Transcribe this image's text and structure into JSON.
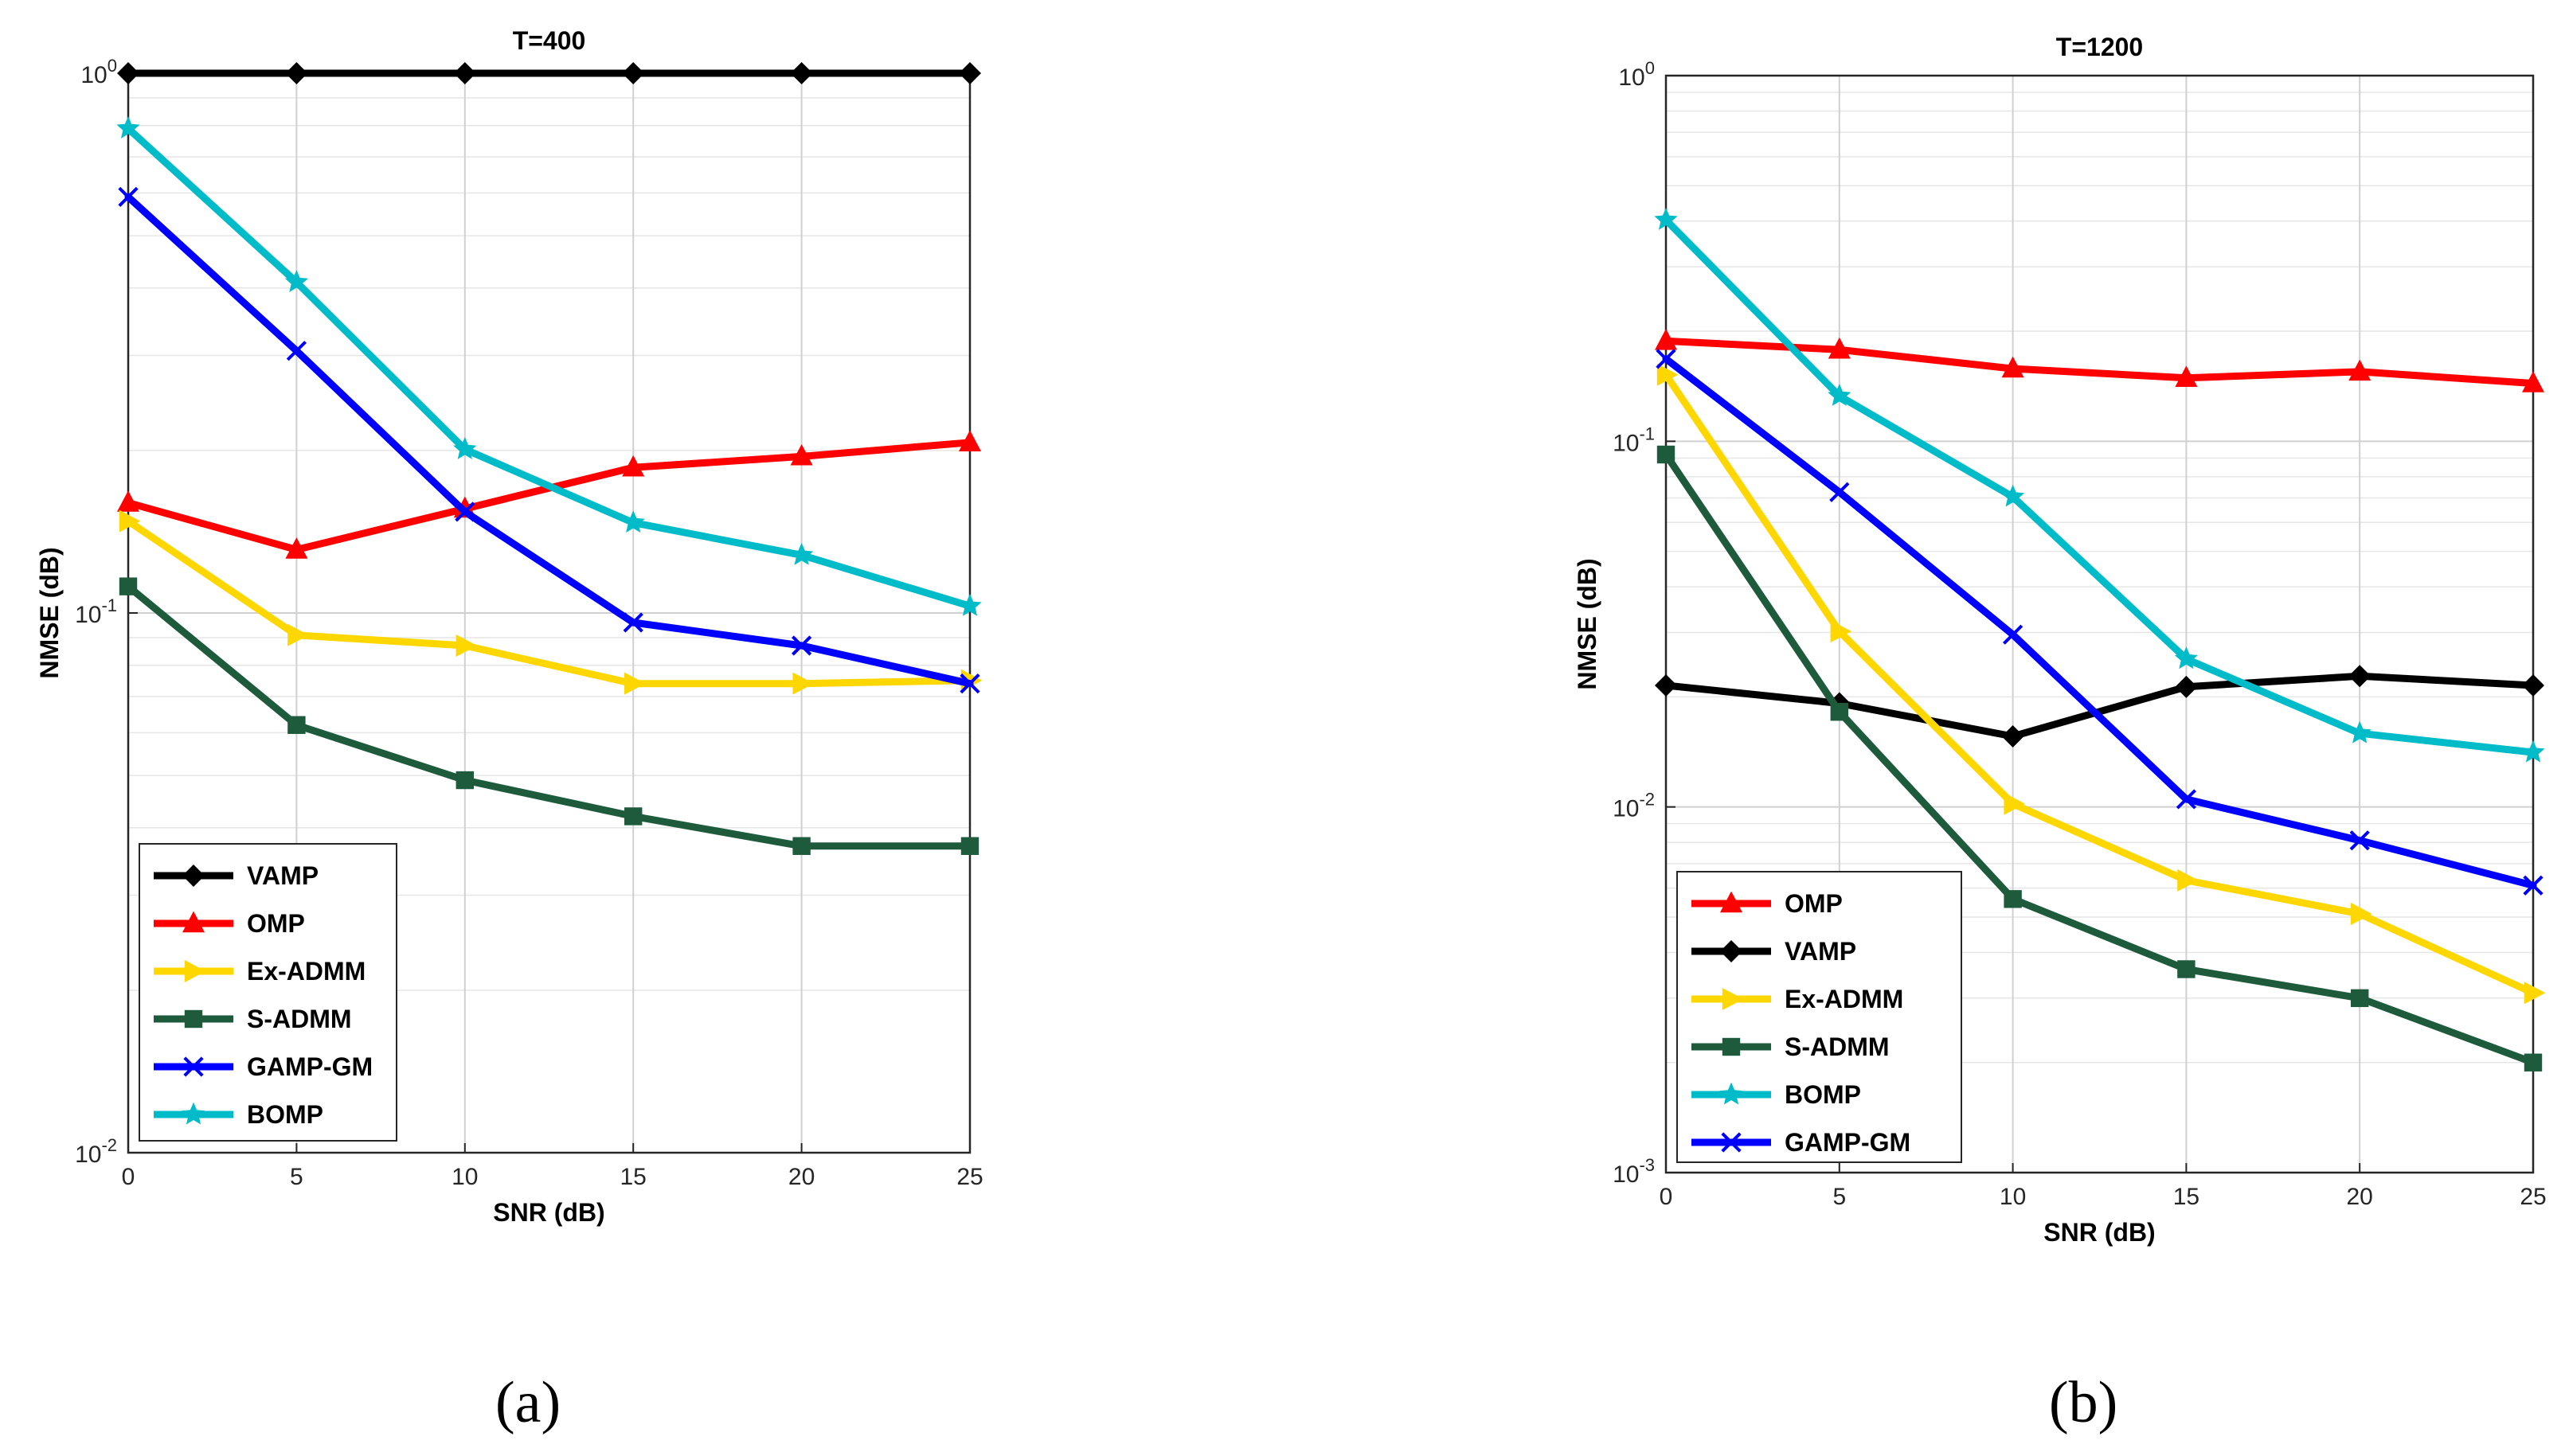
{
  "figure": {
    "panel_a_caption": "(a)",
    "panel_b_caption": "(b)"
  },
  "chart_data": [
    {
      "type": "line",
      "title": "T=400",
      "xlabel": "SNR (dB)",
      "ylabel": "NMSE (dB)",
      "yscale": "log",
      "ylim": [
        0.01,
        1
      ],
      "xlim": [
        0,
        25
      ],
      "grid": true,
      "legend_position": "bottom-left",
      "x": [
        0,
        5,
        10,
        15,
        20,
        25
      ],
      "x_tick_labels": [
        "0",
        "5",
        "10",
        "15",
        "20",
        "25"
      ],
      "y_ticks": [
        {
          "value": 0.01,
          "base": "10",
          "exp": "-2"
        },
        {
          "value": 0.1,
          "base": "10",
          "exp": "-1"
        },
        {
          "value": 1,
          "base": "10",
          "exp": "0"
        }
      ],
      "series": [
        {
          "name": "VAMP",
          "color": "#000000",
          "marker": "diamond",
          "values": [
            1.0,
            1.0,
            1.0,
            1.0,
            1.0,
            1.0
          ]
        },
        {
          "name": "OMP",
          "color": "#ff0000",
          "marker": "triangle-up",
          "values": [
            0.16,
            0.131,
            0.156,
            0.186,
            0.195,
            0.207
          ]
        },
        {
          "name": "Ex-ADMM",
          "color": "#ffd700",
          "marker": "triangle-right",
          "values": [
            0.148,
            0.091,
            0.087,
            0.074,
            0.074,
            0.075
          ]
        },
        {
          "name": "S-ADMM",
          "color": "#1e5a3c",
          "marker": "square",
          "values": [
            0.112,
            0.062,
            0.049,
            0.042,
            0.037,
            0.037
          ]
        },
        {
          "name": "GAMP-GM",
          "color": "#0000ff",
          "marker": "x",
          "values": [
            0.59,
            0.306,
            0.154,
            0.096,
            0.087,
            0.074
          ]
        },
        {
          "name": "BOMP",
          "color": "#00bcc8",
          "marker": "star",
          "values": [
            0.79,
            0.41,
            0.201,
            0.147,
            0.128,
            0.103
          ]
        }
      ]
    },
    {
      "type": "line",
      "title": "T=1200",
      "xlabel": "SNR (dB)",
      "ylabel": "NMSE (dB)",
      "yscale": "log",
      "ylim": [
        0.001,
        1
      ],
      "xlim": [
        0,
        25
      ],
      "grid": true,
      "legend_position": "bottom-left",
      "x": [
        0,
        5,
        10,
        15,
        20,
        25
      ],
      "x_tick_labels": [
        "0",
        "5",
        "10",
        "15",
        "20",
        "25"
      ],
      "y_ticks": [
        {
          "value": 0.001,
          "base": "10",
          "exp": "-3"
        },
        {
          "value": 0.01,
          "base": "10",
          "exp": "-2"
        },
        {
          "value": 0.1,
          "base": "10",
          "exp": "-1"
        },
        {
          "value": 1,
          "base": "10",
          "exp": "0"
        }
      ],
      "series": [
        {
          "name": "OMP",
          "color": "#ff0000",
          "marker": "triangle-up",
          "values": [
            0.188,
            0.178,
            0.158,
            0.149,
            0.155,
            0.144
          ]
        },
        {
          "name": "VAMP",
          "color": "#000000",
          "marker": "diamond",
          "values": [
            0.0215,
            0.0192,
            0.0156,
            0.0213,
            0.0228,
            0.0215
          ]
        },
        {
          "name": "Ex-ADMM",
          "color": "#ffd700",
          "marker": "triangle-right",
          "values": [
            0.152,
            0.0302,
            0.0102,
            0.0063,
            0.0051,
            0.0031
          ]
        },
        {
          "name": "S-ADMM",
          "color": "#1e5a3c",
          "marker": "square",
          "values": [
            0.092,
            0.0182,
            0.0056,
            0.0036,
            0.003,
            0.002
          ]
        },
        {
          "name": "BOMP",
          "color": "#00bcc8",
          "marker": "star",
          "values": [
            0.403,
            0.133,
            0.0705,
            0.0254,
            0.0159,
            0.0141
          ]
        },
        {
          "name": "GAMP-GM",
          "color": "#0000ff",
          "marker": "x",
          "values": [
            0.168,
            0.0726,
            0.0296,
            0.0105,
            0.0081,
            0.0061
          ]
        }
      ]
    }
  ]
}
